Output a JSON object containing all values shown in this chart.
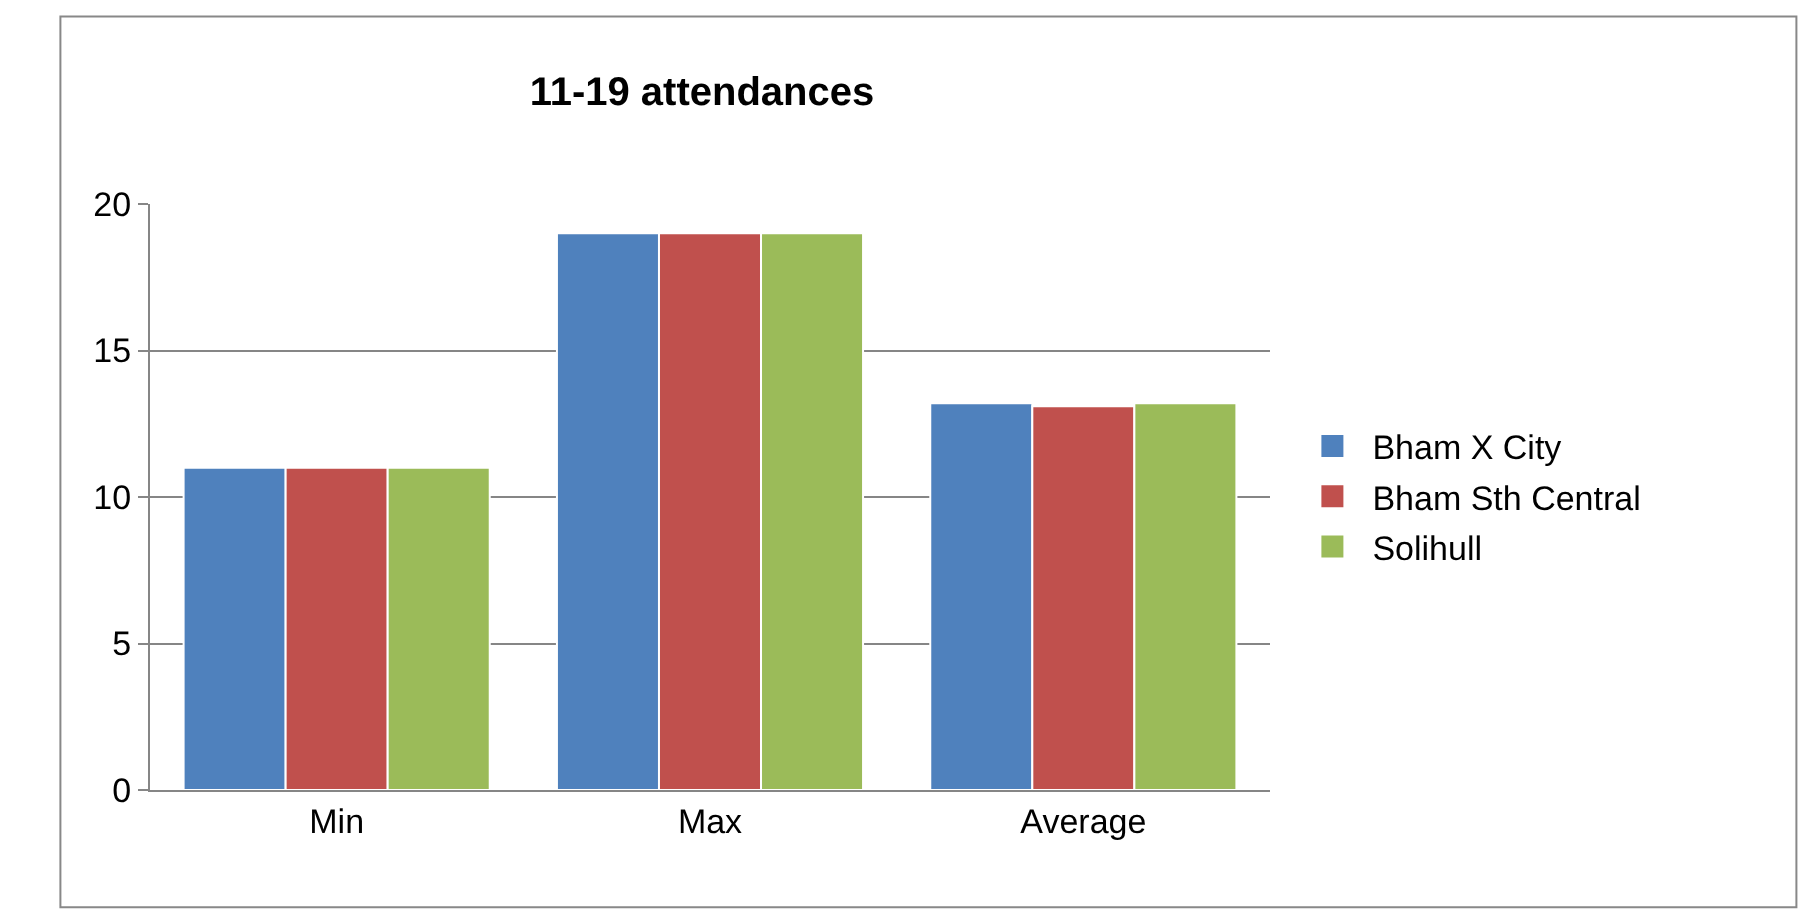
{
  "chart_data": {
    "type": "bar",
    "title": "11-19 attendances",
    "categories": [
      "Min",
      "Max",
      "Average"
    ],
    "series": [
      {
        "name": "Bham X City",
        "color": "#4f81bd",
        "values": [
          11,
          19,
          13.2
        ]
      },
      {
        "name": "Bham Sth Central",
        "color": "#c0504d",
        "values": [
          11,
          19,
          13.1
        ]
      },
      {
        "name": "Solihull",
        "color": "#9bbb59",
        "values": [
          11,
          19,
          13.2
        ]
      }
    ],
    "ylim": [
      0,
      20
    ],
    "yticks": [
      0,
      5,
      10,
      15,
      20
    ],
    "grid": "y",
    "legend": "right"
  }
}
